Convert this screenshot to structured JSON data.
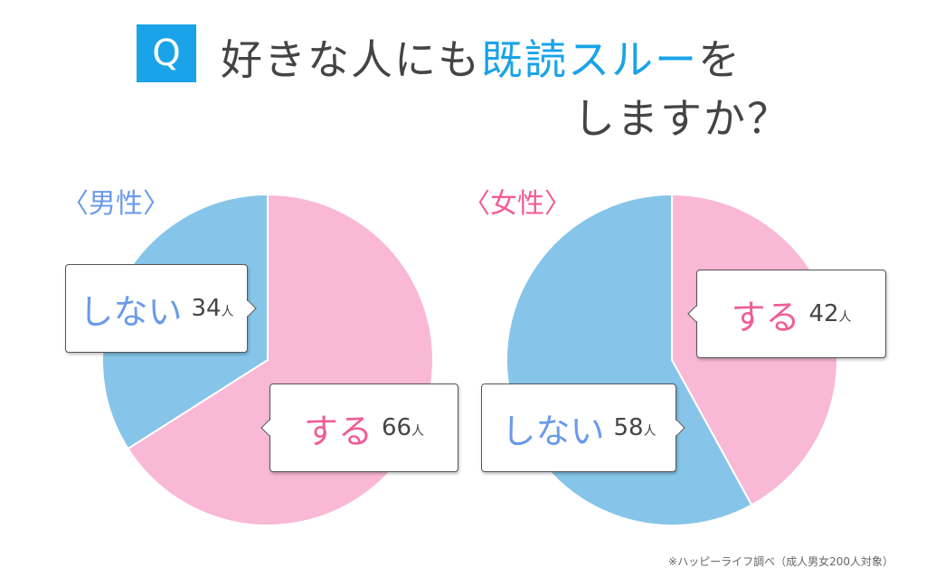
{
  "title": {
    "q_label": "Q",
    "line1_pre": "好きな人にも",
    "line1_highlight": "既読スルー",
    "line1_post": "を",
    "line2": "しますか？"
  },
  "note": "※ハッピーライフ調べ（成人男女200人対象）",
  "colors": {
    "yes": "#f9b8d6",
    "no": "#86c5e9",
    "yes_text": "#ef5d98",
    "no_text": "#6a9be8",
    "accent": "#1aa3e8"
  },
  "chart_data": [
    {
      "type": "pie",
      "title": "〈男性〉",
      "unit": "人",
      "slices": [
        {
          "label": "する",
          "value": 66
        },
        {
          "label": "しない",
          "value": 34
        }
      ]
    },
    {
      "type": "pie",
      "title": "〈女性〉",
      "unit": "人",
      "slices": [
        {
          "label": "する",
          "value": 42
        },
        {
          "label": "しない",
          "value": 58
        }
      ]
    }
  ]
}
